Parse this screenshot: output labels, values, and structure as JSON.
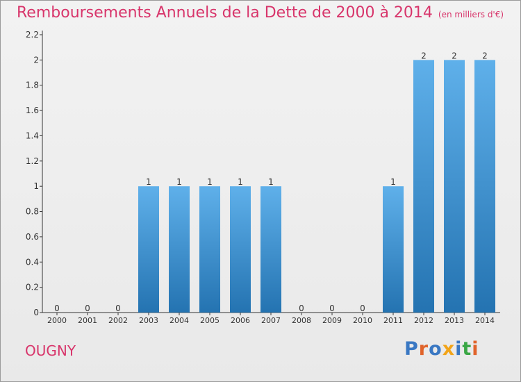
{
  "header": {
    "title": "Remboursements Annuels de la Dette de 2000 à 2014",
    "subtitle": "(en milliers d'€)"
  },
  "footer": {
    "commune": "OUGNY",
    "logo_text": "Proxiti",
    "logo_colors": [
      "#3a78c3",
      "#e0632a",
      "#3a78c3",
      "#f2a418",
      "#3a78c3",
      "#3aa745",
      "#e0632a"
    ]
  },
  "colors": {
    "bar_top": "#5fb0ea",
    "bar_bottom": "#2473b1",
    "axis": "#333333",
    "text": "#333333",
    "title": "#d8356b"
  },
  "chart_data": {
    "type": "bar",
    "title": "Remboursements Annuels de la Dette de 2000 à 2014",
    "subtitle": "(en milliers d'€)",
    "categories": [
      "2000",
      "2001",
      "2002",
      "2003",
      "2004",
      "2005",
      "2006",
      "2007",
      "2008",
      "2009",
      "2010",
      "2011",
      "2012",
      "2013",
      "2014"
    ],
    "values": [
      0,
      0,
      0,
      1,
      1,
      1,
      1,
      1,
      0,
      0,
      0,
      1,
      2,
      2,
      2
    ],
    "value_labels": [
      "0",
      "0",
      "0",
      "1",
      "1",
      "1",
      "1",
      "1",
      "0",
      "0",
      "0",
      "1",
      "2",
      "2",
      "2"
    ],
    "y_ticks": [
      0,
      0.2,
      0.4,
      0.6,
      0.8,
      1,
      1.2,
      1.4,
      1.6,
      1.8,
      2,
      2.2
    ],
    "y_tick_labels": [
      "0",
      "0.2",
      "0.4",
      "0.6",
      "0.8",
      "1",
      "1.2",
      "1.4",
      "1.6",
      "1.8",
      "2",
      "2.2"
    ],
    "ylim": [
      0,
      2.2
    ],
    "xlabel": "",
    "ylabel": "",
    "grid": false,
    "legend": "none"
  }
}
